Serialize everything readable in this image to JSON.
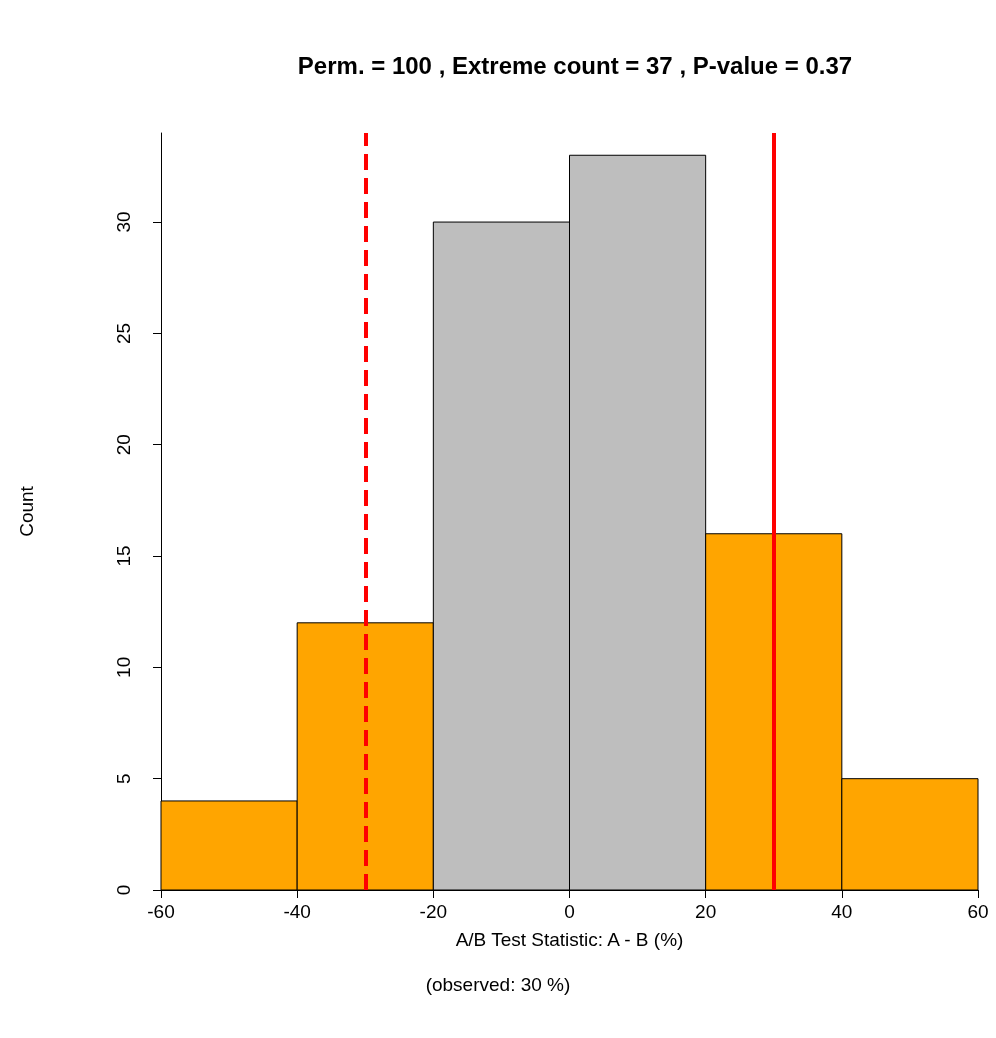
{
  "chart_data": {
    "type": "histogram",
    "title": "Perm. = 100 , Extreme count = 37 , P-value = 0.37",
    "xlabel": "A/B Test Statistic: A - B (%)",
    "ylabel": "Count",
    "annotations": [
      "(observed: 30 %)"
    ],
    "bins": [
      -60,
      -40,
      -20,
      0,
      20,
      40,
      60
    ],
    "values": [
      4,
      12,
      30,
      33,
      16,
      5
    ],
    "colors": [
      "#ffa500",
      "#ffa500",
      "#bebebe",
      "#bebebe",
      "#ffa500",
      "#ffa500"
    ],
    "xlim": [
      -60,
      60
    ],
    "xticks": [
      -60,
      -40,
      -20,
      0,
      20,
      40,
      60
    ],
    "ylim": [
      0,
      34
    ],
    "yticks": [
      0,
      5,
      10,
      15,
      20,
      25,
      30
    ],
    "grid": false,
    "ref_lines": [
      {
        "axis": "x",
        "value": -30,
        "color": "#ff0000",
        "line_style": "dashed"
      },
      {
        "axis": "x",
        "value": 30,
        "color": "#ff0000",
        "line_style": "solid"
      }
    ]
  }
}
